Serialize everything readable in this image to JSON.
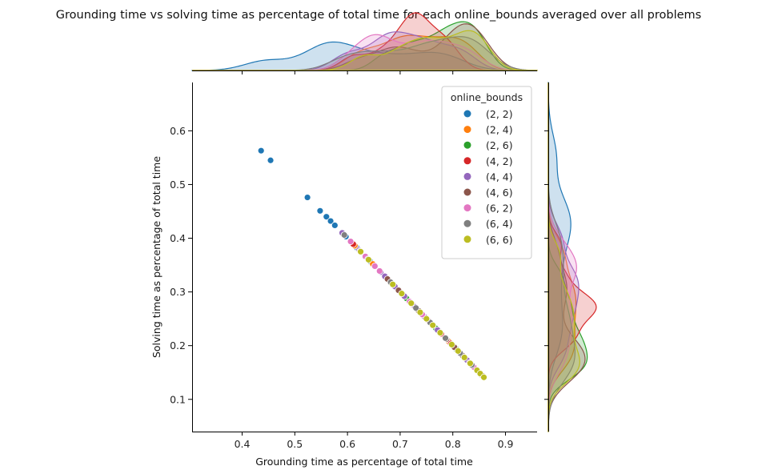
{
  "chart_data": {
    "type": "scatter",
    "title": "Grounding time vs solving time as percentage of total time for each online_bounds averaged over all problems",
    "xlabel": "Grounding time as percentage of total time",
    "ylabel": "Solving time as percentage of total time",
    "xlim": [
      0.305,
      0.96
    ],
    "ylim": [
      0.04,
      0.69
    ],
    "xticks": [
      0.4,
      0.5,
      0.6,
      0.7,
      0.8,
      0.9
    ],
    "yticks": [
      0.1,
      0.2,
      0.3,
      0.4,
      0.5,
      0.6
    ],
    "xtick_labels": [
      "0.4",
      "0.5",
      "0.6",
      "0.7",
      "0.8",
      "0.9"
    ],
    "ytick_labels": [
      "0.1",
      "0.2",
      "0.3",
      "0.4",
      "0.5",
      "0.6"
    ],
    "grid": false,
    "legend": {
      "title": "online_bounds",
      "placement": "upper right"
    },
    "marginals": {
      "top": "kde of x per series",
      "right": "kde of y per series"
    },
    "series": [
      {
        "name": "(2, 2)",
        "color": "#1f77b4",
        "points": [
          [
            0.436,
            0.563
          ],
          [
            0.454,
            0.545
          ],
          [
            0.524,
            0.476
          ],
          [
            0.548,
            0.451
          ],
          [
            0.56,
            0.44
          ],
          [
            0.568,
            0.432
          ],
          [
            0.576,
            0.424
          ],
          [
            0.597,
            0.403
          ],
          [
            0.618,
            0.382
          ],
          [
            0.643,
            0.357
          ],
          [
            0.677,
            0.323
          ],
          [
            0.699,
            0.301
          ],
          [
            0.741,
            0.259
          ],
          [
            0.758,
            0.242
          ],
          [
            0.785,
            0.215
          ],
          [
            0.802,
            0.198
          ]
        ]
      },
      {
        "name": "(2, 4)",
        "color": "#ff7f0e",
        "points": [
          [
            0.614,
            0.386
          ],
          [
            0.648,
            0.352
          ],
          [
            0.682,
            0.318
          ],
          [
            0.703,
            0.297
          ],
          [
            0.723,
            0.277
          ],
          [
            0.745,
            0.255
          ],
          [
            0.77,
            0.23
          ],
          [
            0.792,
            0.208
          ],
          [
            0.815,
            0.185
          ],
          [
            0.836,
            0.164
          ]
        ]
      },
      {
        "name": "(2, 6)",
        "color": "#2ca02c",
        "points": [
          [
            0.671,
            0.329
          ],
          [
            0.712,
            0.288
          ],
          [
            0.738,
            0.262
          ],
          [
            0.768,
            0.232
          ],
          [
            0.788,
            0.212
          ],
          [
            0.806,
            0.194
          ],
          [
            0.823,
            0.177
          ],
          [
            0.841,
            0.159
          ],
          [
            0.852,
            0.148
          ]
        ]
      },
      {
        "name": "(4, 2)",
        "color": "#d62728",
        "points": [
          [
            0.611,
            0.389
          ],
          [
            0.664,
            0.336
          ],
          [
            0.697,
            0.303
          ],
          [
            0.719,
            0.281
          ],
          [
            0.726,
            0.274
          ],
          [
            0.734,
            0.266
          ],
          [
            0.752,
            0.248
          ],
          [
            0.778,
            0.222
          ],
          [
            0.796,
            0.204
          ]
        ]
      },
      {
        "name": "(4, 4)",
        "color": "#9467bd",
        "points": [
          [
            0.59,
            0.41
          ],
          [
            0.622,
            0.378
          ],
          [
            0.663,
            0.337
          ],
          [
            0.671,
            0.329
          ],
          [
            0.69,
            0.31
          ],
          [
            0.708,
            0.292
          ],
          [
            0.728,
            0.272
          ],
          [
            0.747,
            0.253
          ],
          [
            0.771,
            0.229
          ],
          [
            0.8,
            0.2
          ],
          [
            0.827,
            0.173
          ]
        ]
      },
      {
        "name": "(4, 6)",
        "color": "#8c564b",
        "points": [
          [
            0.624,
            0.376
          ],
          [
            0.676,
            0.324
          ],
          [
            0.697,
            0.303
          ],
          [
            0.735,
            0.265
          ],
          [
            0.788,
            0.212
          ],
          [
            0.803,
            0.197
          ],
          [
            0.818,
            0.182
          ],
          [
            0.832,
            0.168
          ],
          [
            0.846,
            0.154
          ],
          [
            0.856,
            0.144
          ]
        ]
      },
      {
        "name": "(6, 2)",
        "color": "#e377c2",
        "points": [
          [
            0.606,
            0.394
          ],
          [
            0.634,
            0.366
          ],
          [
            0.652,
            0.348
          ],
          [
            0.661,
            0.339
          ],
          [
            0.684,
            0.316
          ],
          [
            0.718,
            0.282
          ],
          [
            0.742,
            0.258
          ],
          [
            0.762,
            0.238
          ],
          [
            0.786,
            0.214
          ],
          [
            0.812,
            0.188
          ],
          [
            0.84,
            0.16
          ]
        ]
      },
      {
        "name": "(6, 4)",
        "color": "#7f7f7f",
        "points": [
          [
            0.594,
            0.406
          ],
          [
            0.639,
            0.361
          ],
          [
            0.682,
            0.318
          ],
          [
            0.73,
            0.27
          ],
          [
            0.757,
            0.243
          ],
          [
            0.786,
            0.214
          ],
          [
            0.814,
            0.186
          ],
          [
            0.836,
            0.164
          ],
          [
            0.851,
            0.149
          ]
        ]
      },
      {
        "name": "(6, 6)",
        "color": "#bcbd22",
        "points": [
          [
            0.625,
            0.375
          ],
          [
            0.64,
            0.36
          ],
          [
            0.686,
            0.314
          ],
          [
            0.703,
            0.297
          ],
          [
            0.721,
            0.279
          ],
          [
            0.738,
            0.262
          ],
          [
            0.75,
            0.25
          ],
          [
            0.762,
            0.238
          ],
          [
            0.776,
            0.224
          ],
          [
            0.798,
            0.202
          ],
          [
            0.81,
            0.19
          ],
          [
            0.822,
            0.178
          ],
          [
            0.833,
            0.167
          ],
          [
            0.846,
            0.154
          ],
          [
            0.852,
            0.148
          ],
          [
            0.859,
            0.141
          ]
        ]
      }
    ]
  }
}
